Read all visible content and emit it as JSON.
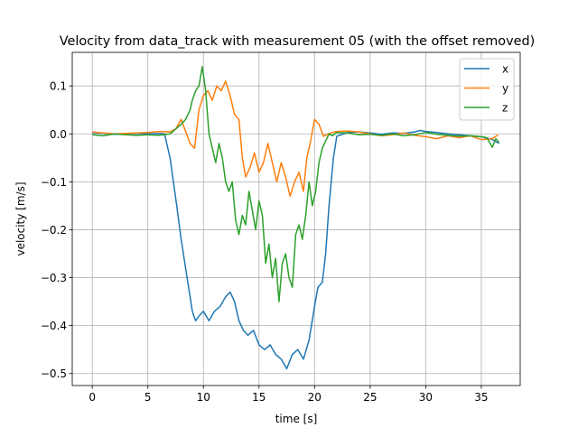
{
  "chart_data": {
    "type": "line",
    "title": "Velocity from data_track with measurement 05 (with the offset removed)",
    "xlabel": "time [s]",
    "ylabel": "velocity [m/s]",
    "xlim": [
      -1.8,
      38.5
    ],
    "ylim": [
      -0.525,
      0.17
    ],
    "xticks": [
      0,
      5,
      10,
      15,
      20,
      25,
      30,
      35
    ],
    "yticks": [
      0.1,
      0.0,
      -0.1,
      -0.2,
      -0.3,
      -0.4,
      -0.5
    ],
    "xtick_labels": [
      "0",
      "5",
      "10",
      "15",
      "20",
      "25",
      "30",
      "35"
    ],
    "ytick_labels": [
      "0.1",
      "0.0",
      "−0.1",
      "−0.2",
      "−0.3",
      "−0.4",
      "−0.5"
    ],
    "grid": true,
    "legend_position": "top-right",
    "series": [
      {
        "name": "x",
        "color": "#1f77b4",
        "x": [
          0,
          1,
          2,
          3,
          4,
          5,
          6,
          6.5,
          7,
          7.3,
          7.6,
          8,
          8.4,
          8.8,
          9.0,
          9.3,
          9.6,
          10,
          10.5,
          11,
          11.5,
          12,
          12.4,
          12.8,
          13.2,
          13.6,
          14,
          14.5,
          15,
          15.5,
          16,
          16.5,
          17,
          17.5,
          18,
          18.5,
          19,
          19.5,
          20,
          20.3,
          20.7,
          21,
          21.3,
          21.7,
          22,
          23,
          24,
          25,
          26,
          27,
          28,
          29,
          29.5,
          30,
          31,
          32,
          33,
          34,
          35,
          36,
          36.6
        ],
        "y": [
          0.003,
          0.001,
          -0.001,
          0.0,
          0.001,
          0.0,
          0.001,
          0.0,
          -0.05,
          -0.1,
          -0.15,
          -0.22,
          -0.28,
          -0.34,
          -0.37,
          -0.39,
          -0.38,
          -0.37,
          -0.39,
          -0.37,
          -0.36,
          -0.34,
          -0.33,
          -0.35,
          -0.39,
          -0.41,
          -0.42,
          -0.41,
          -0.44,
          -0.45,
          -0.44,
          -0.46,
          -0.47,
          -0.49,
          -0.46,
          -0.45,
          -0.47,
          -0.43,
          -0.36,
          -0.32,
          -0.31,
          -0.25,
          -0.15,
          -0.05,
          -0.005,
          0.003,
          0.004,
          0.002,
          -0.001,
          0.002,
          0.001,
          0.004,
          0.007,
          0.005,
          0.003,
          0.0,
          -0.002,
          -0.004,
          -0.006,
          -0.012,
          -0.02
        ]
      },
      {
        "name": "y",
        "color": "#ff7f0e",
        "x": [
          0,
          1,
          2,
          3,
          4,
          5,
          6,
          7,
          7.5,
          8,
          8.4,
          8.8,
          9.2,
          9.6,
          10,
          10.4,
          10.8,
          11.2,
          11.6,
          12,
          12.4,
          12.8,
          13.2,
          13.5,
          13.8,
          14.2,
          14.6,
          15,
          15.4,
          15.8,
          16.2,
          16.6,
          17,
          17.4,
          17.8,
          18.2,
          18.6,
          19,
          19.3,
          19.6,
          20,
          20.4,
          20.8,
          21.2,
          21.6,
          22,
          23,
          24,
          25,
          26,
          27,
          28,
          29,
          30,
          31,
          32,
          33,
          34,
          35,
          36,
          36.5
        ],
        "y": [
          0.004,
          0.002,
          0.0,
          0.001,
          0.002,
          0.003,
          0.005,
          0.004,
          0.01,
          0.03,
          0.005,
          -0.02,
          -0.03,
          0.05,
          0.08,
          0.09,
          0.07,
          0.1,
          0.09,
          0.11,
          0.08,
          0.04,
          0.03,
          -0.05,
          -0.09,
          -0.07,
          -0.04,
          -0.08,
          -0.06,
          -0.02,
          -0.06,
          -0.1,
          -0.06,
          -0.09,
          -0.13,
          -0.1,
          -0.08,
          -0.12,
          -0.05,
          -0.02,
          0.03,
          0.02,
          -0.005,
          0.0,
          0.003,
          0.005,
          0.006,
          0.004,
          0.0,
          -0.004,
          -0.002,
          0.002,
          -0.003,
          -0.006,
          -0.01,
          -0.004,
          -0.008,
          -0.004,
          -0.012,
          -0.01,
          -0.002
        ]
      },
      {
        "name": "z",
        "color": "#2ca02c",
        "x": [
          0,
          1,
          2,
          3,
          4,
          5,
          6,
          7,
          7.5,
          8,
          8.4,
          8.8,
          9.0,
          9.3,
          9.6,
          9.9,
          10.2,
          10.5,
          10.8,
          11.1,
          11.4,
          11.7,
          12,
          12.3,
          12.6,
          12.9,
          13.2,
          13.5,
          13.8,
          14.1,
          14.4,
          14.7,
          15,
          15.3,
          15.6,
          15.9,
          16.2,
          16.5,
          16.8,
          17.1,
          17.4,
          17.7,
          18,
          18.3,
          18.6,
          18.9,
          19.2,
          19.5,
          19.8,
          20.1,
          20.4,
          20.7,
          21,
          21.3,
          21.6,
          22,
          23,
          24,
          25,
          26,
          27,
          28,
          29,
          30,
          31,
          32,
          33,
          34,
          35,
          35.5,
          36,
          36.3,
          36.6
        ],
        "y": [
          -0.002,
          -0.004,
          0.0,
          -0.002,
          -0.003,
          -0.002,
          -0.003,
          0.0,
          0.01,
          0.02,
          0.03,
          0.05,
          0.07,
          0.09,
          0.1,
          0.14,
          0.09,
          0.0,
          -0.03,
          -0.06,
          -0.02,
          -0.05,
          -0.1,
          -0.12,
          -0.1,
          -0.18,
          -0.21,
          -0.17,
          -0.19,
          -0.12,
          -0.16,
          -0.2,
          -0.14,
          -0.17,
          -0.27,
          -0.23,
          -0.3,
          -0.26,
          -0.35,
          -0.27,
          -0.25,
          -0.3,
          -0.32,
          -0.21,
          -0.19,
          -0.22,
          -0.17,
          -0.1,
          -0.15,
          -0.12,
          -0.06,
          -0.03,
          -0.015,
          0.0,
          -0.004,
          0.003,
          0.002,
          -0.002,
          -0.001,
          -0.003,
          0.0,
          -0.004,
          -0.002,
          0.003,
          -0.001,
          -0.003,
          -0.005,
          -0.004,
          -0.006,
          -0.008,
          -0.028,
          -0.01,
          -0.018
        ]
      }
    ]
  }
}
